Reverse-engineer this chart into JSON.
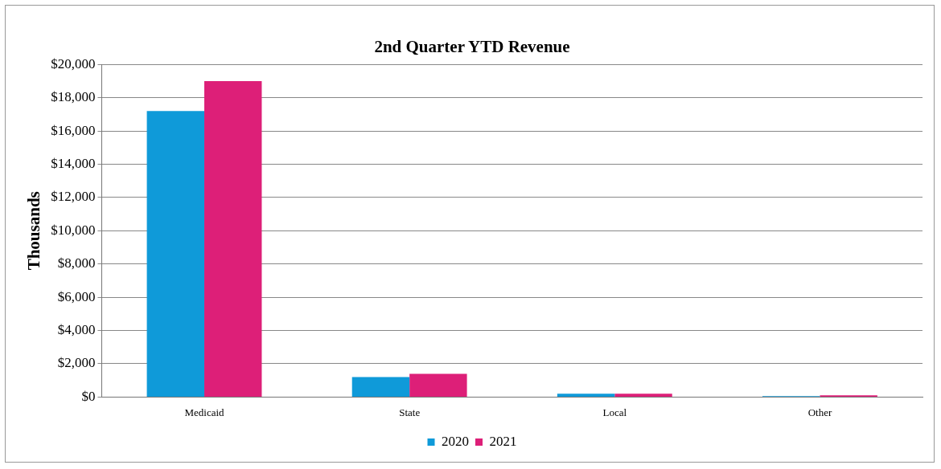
{
  "chart_data": {
    "type": "bar",
    "title": "2nd Quarter YTD Revenue",
    "ylabel": "Thousands",
    "categories": [
      "Medicaid",
      "State",
      "Local",
      "Other"
    ],
    "series": [
      {
        "name": "2020",
        "color": "#0f9ad9",
        "values": [
          17200,
          1200,
          200,
          50
        ]
      },
      {
        "name": "2021",
        "color": "#dd1f78",
        "values": [
          19000,
          1400,
          200,
          100
        ]
      }
    ],
    "ylim": [
      0,
      20000
    ],
    "yticks": [
      {
        "value": 0,
        "label": "$0"
      },
      {
        "value": 2000,
        "label": "$2,000"
      },
      {
        "value": 4000,
        "label": "$4,000"
      },
      {
        "value": 6000,
        "label": "$6,000"
      },
      {
        "value": 8000,
        "label": "$8,000"
      },
      {
        "value": 10000,
        "label": "$10,000"
      },
      {
        "value": 12000,
        "label": "$12,000"
      },
      {
        "value": 14000,
        "label": "$14,000"
      },
      {
        "value": 16000,
        "label": "$16,000"
      },
      {
        "value": 18000,
        "label": "$18,000"
      },
      {
        "value": 20000,
        "label": "$20,000"
      }
    ],
    "grid": "y",
    "legend": "bottom"
  }
}
